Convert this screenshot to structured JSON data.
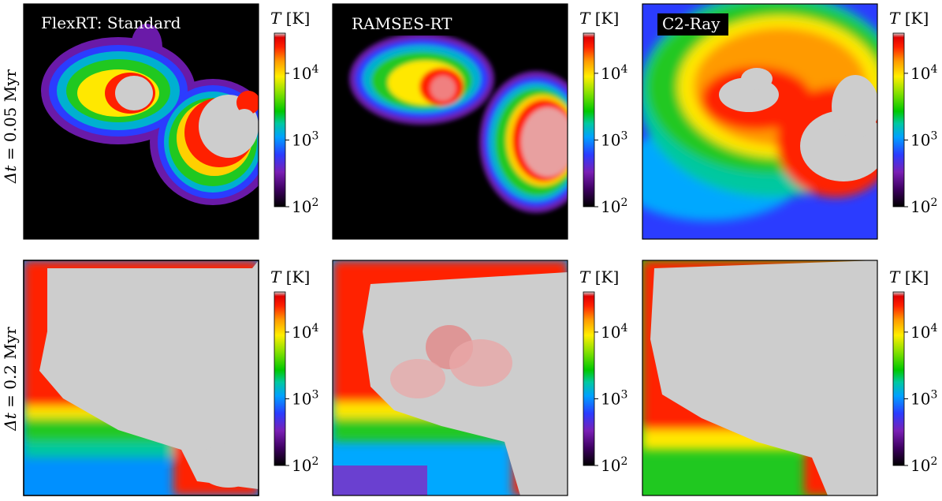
{
  "chart_data": {
    "type": "heatmap",
    "colorbar": {
      "label": "T [K]",
      "scale": "log",
      "range": [
        100,
        40000
      ],
      "ticks": [
        {
          "base": "10",
          "exp": "2",
          "value": 100
        },
        {
          "base": "10",
          "exp": "3",
          "value": 1000
        },
        {
          "base": "10",
          "exp": "4",
          "value": 10000
        }
      ],
      "colormap": [
        "#000000",
        "#3d0060",
        "#7a1fb5",
        "#2b3cff",
        "#00a0ff",
        "#00c8a0",
        "#00c800",
        "#80e000",
        "#ffee00",
        "#ff9a00",
        "#ff2000",
        "#e00000",
        "#cdcdcd"
      ]
    },
    "rows": [
      {
        "label_var": "Δt",
        "label_value": " = 0.05 Myr"
      },
      {
        "label_var": "Δt",
        "label_value": " = 0.2 Myr"
      }
    ],
    "columns": [
      {
        "title": "FlexRT: Standard"
      },
      {
        "title": "RAMSES-RT"
      },
      {
        "title": "C2-Ray"
      }
    ]
  }
}
